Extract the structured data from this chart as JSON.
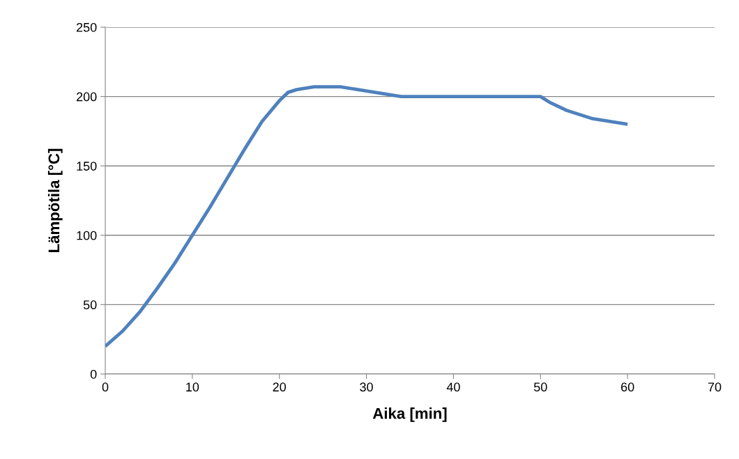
{
  "chart_data": {
    "type": "line",
    "xlabel": "Aika [min]",
    "ylabel": "Lämpötila [°C]",
    "x": [
      0,
      2,
      4,
      6,
      8,
      10,
      12,
      14,
      16,
      18,
      20,
      21,
      22,
      24,
      27,
      30,
      34,
      40,
      50,
      51,
      53,
      56,
      60
    ],
    "series": [
      {
        "color": "#4f81bd",
        "values": [
          20,
          31,
          45,
          62,
          80,
          100,
          120,
          141,
          162,
          182,
          197,
          203,
          205,
          207,
          207,
          204,
          200,
          200,
          200,
          196,
          190,
          184,
          180
        ]
      }
    ],
    "xlim": [
      0,
      70
    ],
    "xticks": [
      0,
      10,
      20,
      30,
      40,
      50,
      60,
      70
    ],
    "ylim": [
      0,
      250
    ],
    "yticks": [
      0,
      50,
      100,
      150,
      200,
      250
    ],
    "grid": "y",
    "legend": false,
    "marker": "none",
    "line_style": "solid"
  }
}
